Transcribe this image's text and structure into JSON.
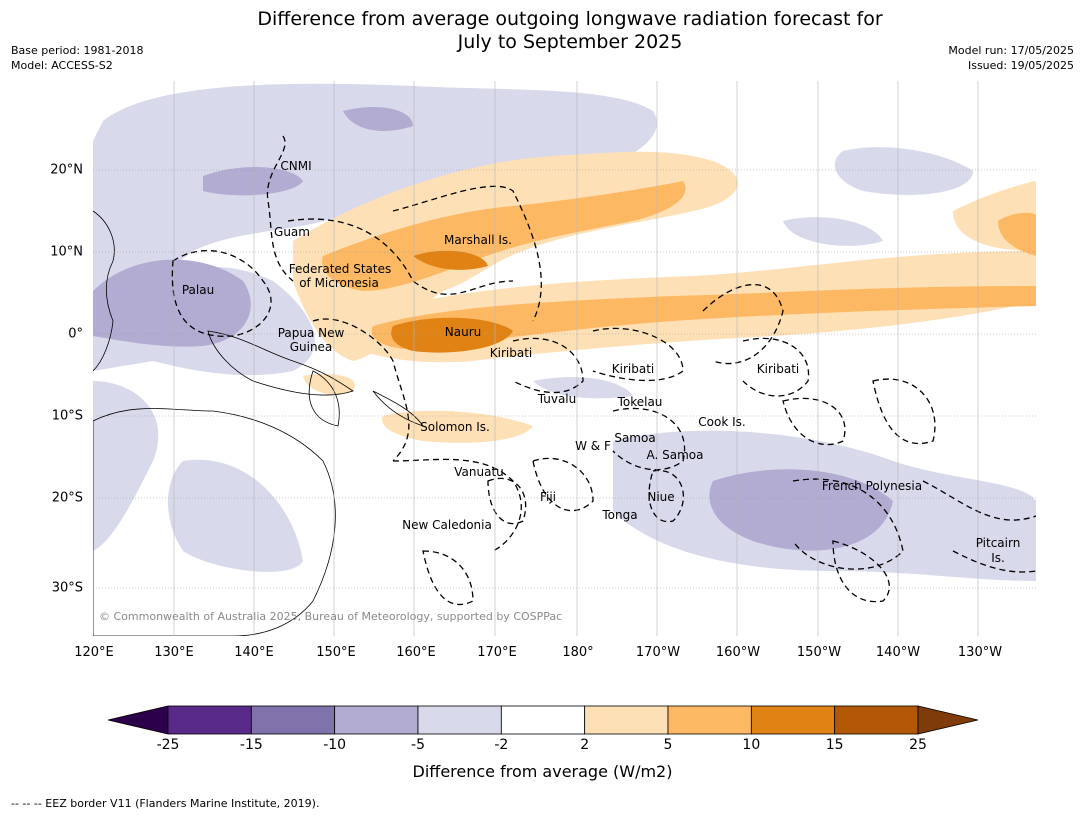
{
  "title_line1": "Difference from average outgoing longwave radiation forecast for",
  "title_line2": "July to September 2025",
  "meta_left": {
    "base_period": "Base period: 1981-2018",
    "model": "Model: ACCESS-S2"
  },
  "meta_right": {
    "model_run": "Model run: 17/05/2025",
    "issued": "Issued: 19/05/2025"
  },
  "lat_ticks": [
    "20°N",
    "10°N",
    "0°",
    "10°S",
    "20°S",
    "30°S"
  ],
  "lon_ticks": [
    "120°E",
    "130°E",
    "140°E",
    "150°E",
    "160°E",
    "170°E",
    "180°",
    "170°W",
    "160°W",
    "150°W",
    "140°W",
    "130°W"
  ],
  "region_labels": {
    "cnmi": "CNMI",
    "guam": "Guam",
    "marshall": "Marshall Is.",
    "fsm1": "Federated States",
    "fsm2": "of Micronesia",
    "palau": "Palau",
    "png1": "Papua New",
    "png2": "Guinea",
    "nauru": "Nauru",
    "kiribati_w": "Kiribati",
    "kiribati_c": "Kiribati",
    "kiribati_e": "Kiribati",
    "tuvalu": "Tuvalu",
    "tokelau": "Tokelau",
    "cook": "Cook Is.",
    "solomon": "Solomon Is.",
    "samoa": "Samoa",
    "wf": "W & F",
    "asamoa": "A. Samoa",
    "vanuatu": "Vanuatu",
    "fiji": "Fiji",
    "niue": "Niue",
    "tonga": "Tonga",
    "frenchpoly": "French Polynesia",
    "newcal": "New Caledonia",
    "pitcairn1": "Pitcairn",
    "pitcairn2": "Is."
  },
  "copyright": "© Commonwealth of Australia 2025, Bureau of Meteorology, supported by COSPPac",
  "colorbar": {
    "ticks": [
      "-25",
      "-15",
      "-10",
      "-5",
      "-2",
      "2",
      "5",
      "10",
      "15",
      "25"
    ],
    "colors": [
      "#2d004b",
      "#5a2a8a",
      "#8073ac",
      "#b2abd2",
      "#d8daeb",
      "#ffffff",
      "#fee0b6",
      "#fdb863",
      "#e08214",
      "#b35806",
      "#7f3b08"
    ],
    "label": "Difference from average (W/m2)"
  },
  "footer": "--  --  -- EEZ border V11 (Flanders Marine Institute, 2019)."
}
